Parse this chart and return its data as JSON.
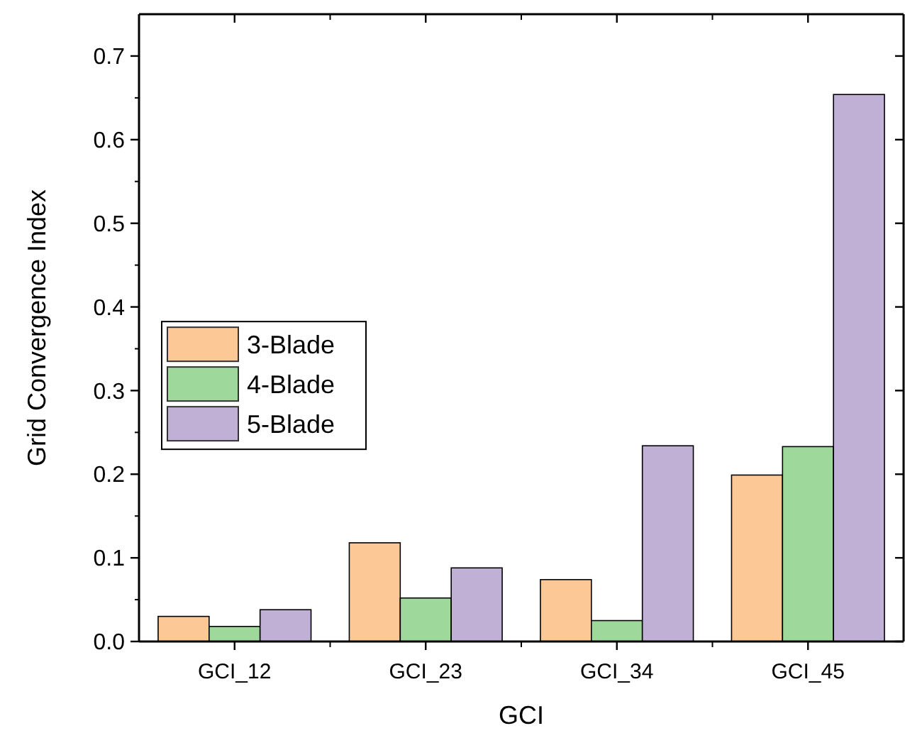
{
  "chart_data": {
    "type": "bar",
    "xlabel": "GCI",
    "ylabel": "Grid Convergence Index",
    "categories": [
      "GCI_12",
      "GCI_23",
      "GCI_34",
      "GCI_45"
    ],
    "series": [
      {
        "name": "3-Blade",
        "color": "#fcc895",
        "values": [
          0.03,
          0.118,
          0.074,
          0.199
        ]
      },
      {
        "name": "4-Blade",
        "color": "#9ed89b",
        "values": [
          0.018,
          0.052,
          0.025,
          0.233
        ]
      },
      {
        "name": "5-Blade",
        "color": "#c1b0d6",
        "values": [
          0.038,
          0.088,
          0.234,
          0.654
        ]
      }
    ],
    "ylim": [
      0,
      0.75
    ],
    "yticks": [
      {
        "value": 0,
        "label": "0.0"
      },
      0.1,
      0.2,
      0.3,
      0.4,
      0.5,
      0.6,
      0.7
    ],
    "grid": false,
    "legend": "left"
  }
}
